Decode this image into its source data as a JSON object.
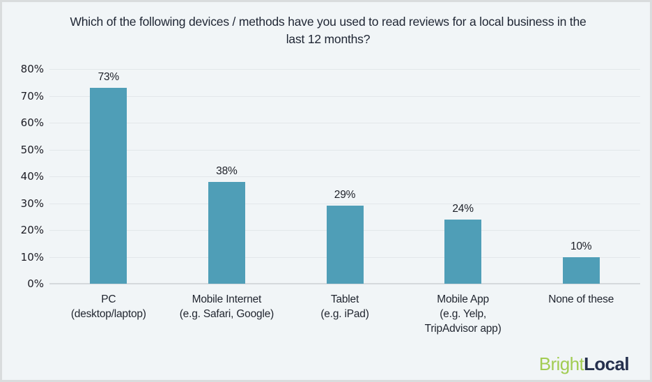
{
  "chart_data": {
    "type": "bar",
    "title": "Which of the following devices / methods have you used to read reviews for a local business in the last 12 months?",
    "categories": [
      "PC\n(desktop/laptop)",
      "Mobile Internet\n(e.g. Safari, Google)",
      "Tablet\n(e.g. iPad)",
      "Mobile App\n(e.g. Yelp,\nTripAdvisor app)",
      "None of these"
    ],
    "values": [
      73,
      38,
      29,
      24,
      10
    ],
    "value_labels": [
      "73%",
      "38%",
      "29%",
      "24%",
      "10%"
    ],
    "xlabel": "",
    "ylabel": "",
    "ylim": [
      0,
      80
    ],
    "y_tick_step": 10,
    "y_tick_labels": [
      "0%",
      "10%",
      "20%",
      "30%",
      "40%",
      "50%",
      "60%",
      "70%",
      "80%"
    ],
    "grid": true,
    "legend": "none",
    "bar_color": "#4f9eb7",
    "background_color": "#f1f5f7",
    "gridline_color": "#e2e7ea",
    "baseline_color": "#d5d9dc",
    "text_color": "#1e2533"
  },
  "footer": {
    "brand_part1": "Bright",
    "brand_part2": "Local",
    "brand_part1_color": "#a2cc52",
    "brand_part2_color": "#25304e"
  }
}
